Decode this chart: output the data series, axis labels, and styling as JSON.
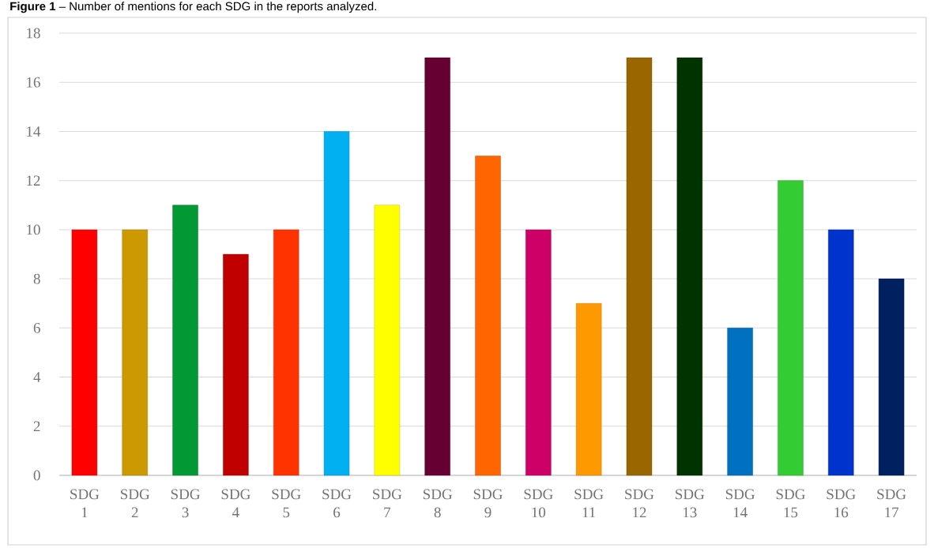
{
  "chart_data": {
    "type": "bar",
    "title": "**Figure 1** – Number of mentions for each SDG in the reports analyzed.",
    "categories": [
      "SDG 1",
      "SDG 2",
      "SDG 3",
      "SDG 4",
      "SDG 5",
      "SDG 6",
      "SDG 7",
      "SDG 8",
      "SDG 9",
      "SDG 10",
      "SDG 11",
      "SDG 12",
      "SDG 13",
      "SDG 14",
      "SDG 15",
      "SDG 16",
      "SDG 17"
    ],
    "values": [
      10,
      10,
      11,
      9,
      10,
      14,
      11,
      17,
      13,
      10,
      7,
      17,
      17,
      6,
      12,
      10,
      8
    ],
    "colors": [
      "#ff0000",
      "#cc9900",
      "#009933",
      "#c00000",
      "#ff3300",
      "#00b0f0",
      "#ffff00",
      "#660033",
      "#ff6600",
      "#cc0066",
      "#ff9900",
      "#996600",
      "#003300",
      "#0070c0",
      "#33cc33",
      "#0033cc",
      "#002060"
    ],
    "ylim": [
      0,
      18
    ],
    "yticks": [
      0,
      2,
      4,
      6,
      8,
      10,
      12,
      14,
      16,
      18
    ],
    "grid": "y"
  }
}
